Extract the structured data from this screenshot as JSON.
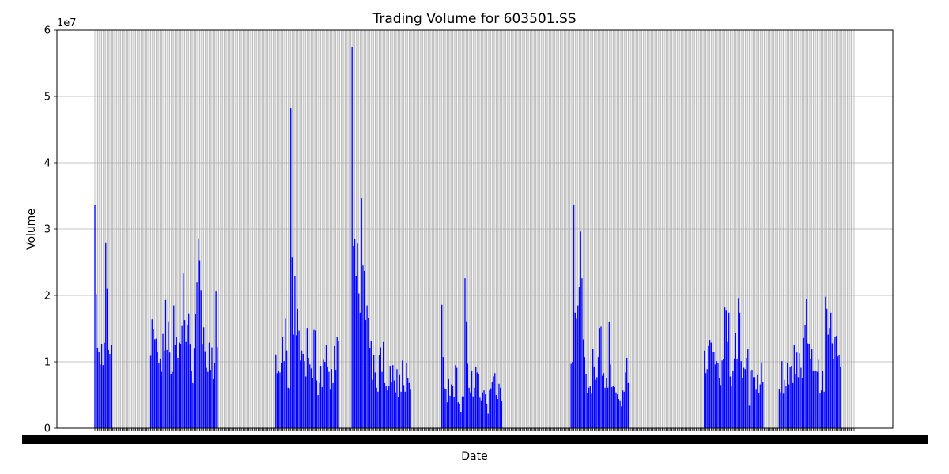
{
  "chart_data": {
    "type": "bar",
    "title": "Trading Volume for 603501.SS",
    "xlabel": "Date",
    "ylabel": "Volume",
    "y_offset_text": "1e7",
    "y_tick_labels": [
      "0",
      "1",
      "2",
      "3",
      "4",
      "5",
      "6"
    ],
    "y_tick_values": [
      0,
      10000000,
      20000000,
      30000000,
      40000000,
      50000000,
      60000000
    ],
    "ylim": [
      0,
      60000000
    ],
    "grid": true,
    "bar_color": "#0000ff",
    "x_tick_labels_illegible": true,
    "description_of_x_axis": "",
    "values": [
      33600000,
      20200000,
      12100000,
      11500000,
      9600000,
      12700000,
      9500000,
      12900000,
      28000000,
      21000000,
      11800000,
      11200000,
      12500000,
      0,
      0,
      0,
      0,
      0,
      0,
      0,
      0,
      0,
      0,
      0,
      0,
      0,
      0,
      0,
      0,
      0,
      0,
      0,
      0,
      0,
      0,
      0,
      0,
      0,
      0,
      0,
      0,
      10900000,
      16400000,
      15000000,
      13400000,
      13500000,
      11500000,
      9800000,
      10500000,
      8500000,
      14200000,
      11700000,
      19300000,
      11800000,
      16100000,
      11400000,
      8100000,
      8500000,
      18500000,
      12500000,
      13800000,
      10600000,
      12900000,
      12700000,
      15400000,
      23300000,
      16300000,
      13000000,
      15600000,
      17300000,
      12600000,
      8600000,
      6800000,
      12000000,
      17200000,
      22000000,
      28600000,
      25300000,
      20800000,
      12600000,
      15200000,
      11600000,
      9100000,
      8500000,
      12900000,
      8800000,
      12200000,
      7400000,
      9800000,
      20700000,
      12200000,
      0,
      0,
      0,
      0,
      0,
      0,
      0,
      0,
      0,
      0,
      0,
      0,
      0,
      0,
      0,
      0,
      0,
      0,
      0,
      0,
      0,
      0,
      0,
      0,
      0,
      0,
      0,
      0,
      0,
      0,
      0,
      0,
      0,
      0,
      0,
      0,
      0,
      0,
      0,
      0,
      0,
      0,
      11100000,
      8300000,
      8700000,
      8400000,
      9800000,
      13800000,
      10100000,
      16500000,
      11700000,
      6100000,
      6000000,
      48200000,
      25800000,
      14100000,
      22900000,
      14000000,
      18000000,
      14700000,
      10200000,
      11700000,
      11200000,
      10100000,
      7800000,
      15100000,
      10600000,
      9600000,
      9000000,
      7600000,
      14800000,
      14700000,
      7200000,
      5000000,
      6800000,
      9400000,
      6200000,
      10300000,
      10000000,
      12500000,
      9300000,
      8500000,
      5800000,
      8900000,
      6800000,
      12400000,
      8800000,
      13700000,
      13100000,
      0,
      0,
      0,
      0,
      0,
      0,
      0,
      0,
      0,
      57400000,
      27500000,
      28500000,
      22900000,
      27800000,
      20300000,
      17400000,
      34700000,
      24500000,
      23700000,
      16300000,
      18500000,
      16600000,
      12100000,
      13100000,
      7300000,
      11000000,
      8400000,
      6100000,
      5500000,
      11000000,
      12200000,
      8500000,
      13000000,
      6800000,
      6300000,
      5700000,
      6400000,
      9400000,
      6900000,
      9500000,
      7200000,
      5400000,
      8900000,
      4700000,
      8000000,
      5500000,
      10200000,
      6500000,
      5500000,
      9800000,
      7600000,
      6800000,
      5800000,
      0,
      0,
      0,
      0,
      0,
      0,
      0,
      0,
      0,
      0,
      0,
      0,
      0,
      0,
      0,
      0,
      0,
      0,
      0,
      0,
      0,
      0,
      18600000,
      10700000,
      6000000,
      5900000,
      3900000,
      7400000,
      4900000,
      6600000,
      6400000,
      4700000,
      9500000,
      9100000,
      3900000,
      3700000,
      2500000,
      4800000,
      4800000,
      22600000,
      16100000,
      9700000,
      6100000,
      5400000,
      8700000,
      4800000,
      6100000,
      9200000,
      8400000,
      8200000,
      4600000,
      4200000,
      5400000,
      5700000,
      5100000,
      3700000,
      2200000,
      5700000,
      6000000,
      6900000,
      7800000,
      8300000,
      5000000,
      4400000,
      6700000,
      6100000,
      4100000,
      0,
      0,
      0,
      0,
      0,
      0,
      0,
      0,
      0,
      0,
      0,
      0,
      0,
      0,
      0,
      0,
      0,
      0,
      0,
      0,
      0,
      0,
      0,
      0,
      0,
      0,
      0,
      0,
      0,
      0,
      0,
      0,
      0,
      0,
      0,
      0,
      0,
      0,
      0,
      0,
      0,
      0,
      0,
      0,
      0,
      0,
      0,
      0,
      0,
      0,
      9700000,
      10000000,
      33700000,
      17400000,
      16500000,
      18500000,
      21300000,
      29600000,
      22600000,
      13400000,
      10700000,
      8200000,
      5300000,
      6100000,
      6400000,
      5200000,
      11900000,
      9300000,
      7300000,
      7700000,
      10700000,
      15100000,
      15300000,
      7900000,
      8300000,
      6100000,
      7600000,
      6100000,
      16000000,
      9600000,
      6200000,
      6400000,
      6200000,
      5400000,
      5100000,
      4400000,
      4200000,
      3300000,
      5700000,
      5500000,
      8400000,
      10600000,
      6800000,
      0,
      0,
      0,
      0,
      0,
      0,
      0,
      0,
      0,
      0,
      0,
      0,
      0,
      0,
      0,
      0,
      0,
      0,
      0,
      0,
      0,
      0,
      0,
      0,
      0,
      0,
      0,
      0,
      0,
      0,
      0,
      0,
      0,
      0,
      0,
      0,
      0,
      0,
      0,
      0,
      0,
      0,
      0,
      0,
      0,
      0,
      0,
      0,
      0,
      0,
      0,
      0,
      0,
      0,
      0,
      11700000,
      8300000,
      8900000,
      12400000,
      13200000,
      12900000,
      11500000,
      11500000,
      9600000,
      10100000,
      9800000,
      7600000,
      6500000,
      10200000,
      10400000,
      18200000,
      17700000,
      13000000,
      17400000,
      7800000,
      6300000,
      8700000,
      10500000,
      14300000,
      10400000,
      19600000,
      17400000,
      10100000,
      7600000,
      9100000,
      8900000,
      10600000,
      11900000,
      3400000,
      8700000,
      8800000,
      7700000,
      7700000,
      5800000,
      8000000,
      5300000,
      6600000,
      9900000,
      6900000,
      0,
      0,
      0,
      0,
      0,
      0,
      0,
      0,
      0,
      0,
      0,
      5900000,
      5400000,
      10100000,
      5200000,
      7300000,
      6300000,
      9900000,
      6600000,
      9200000,
      9400000,
      6800000,
      12500000,
      8100000,
      11400000,
      7700000,
      11300000,
      9100000,
      7600000,
      13600000,
      15600000,
      19400000,
      12800000,
      12700000,
      10400000,
      11900000,
      8600000,
      8700000,
      8700000,
      8500000,
      10300000,
      5300000,
      5700000,
      8600000,
      5500000,
      19800000,
      18000000,
      14100000,
      15100000,
      17400000,
      12800000,
      10400000,
      13700000,
      13900000,
      10800000,
      11000000,
      9300000,
      0,
      0,
      0,
      0,
      0,
      0,
      0,
      0,
      0,
      0
    ]
  }
}
